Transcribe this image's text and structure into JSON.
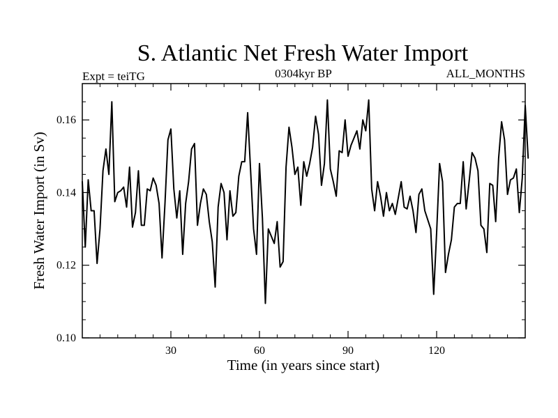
{
  "chart_data": {
    "type": "line",
    "title": "S. Atlantic Net Fresh Water Import",
    "subtitle_left": "Expt = teiTG",
    "subtitle_center": "0304kyr BP",
    "subtitle_right": "ALL_MONTHS",
    "xlabel": "Time (in years since start)",
    "ylabel": "Fresh Water Import (in Sv)",
    "xlim": [
      0,
      150
    ],
    "ylim": [
      0.1,
      0.17
    ],
    "x_ticks": [
      30,
      60,
      90,
      120
    ],
    "x_tick_labels": [
      "30",
      "60",
      "90",
      "120"
    ],
    "x_minor_step": 6,
    "y_ticks": [
      0.1,
      0.12,
      0.14,
      0.16
    ],
    "y_tick_labels": [
      "0.10",
      "0.12",
      "0.14",
      "0.16"
    ],
    "y_minor_step": 0.005,
    "grid": false,
    "x_start": 0,
    "x_step": 1,
    "series": [
      {
        "name": "Fresh Water Import",
        "color": "#000000",
        "values": [
          0.143,
          0.125,
          0.1435,
          0.135,
          0.135,
          0.1205,
          0.13,
          0.146,
          0.152,
          0.145,
          0.165,
          0.1375,
          0.14,
          0.1405,
          0.1415,
          0.136,
          0.147,
          0.1305,
          0.1345,
          0.146,
          0.131,
          0.131,
          0.141,
          0.1405,
          0.144,
          0.142,
          0.137,
          0.122,
          0.137,
          0.1545,
          0.1575,
          0.141,
          0.133,
          0.1405,
          0.123,
          0.137,
          0.143,
          0.152,
          0.1535,
          0.131,
          0.137,
          0.141,
          0.1395,
          0.132,
          0.1265,
          0.114,
          0.136,
          0.1425,
          0.14,
          0.127,
          0.1405,
          0.1335,
          0.1345,
          0.1445,
          0.1485,
          0.1485,
          0.162,
          0.146,
          0.13,
          0.123,
          0.148,
          0.133,
          0.1095,
          0.13,
          0.128,
          0.126,
          0.132,
          0.1195,
          0.121,
          0.147,
          0.158,
          0.1525,
          0.145,
          0.147,
          0.1365,
          0.1485,
          0.1445,
          0.148,
          0.1525,
          0.161,
          0.156,
          0.142,
          0.148,
          0.1655,
          0.1465,
          0.143,
          0.139,
          0.1515,
          0.151,
          0.16,
          0.15,
          0.153,
          0.155,
          0.157,
          0.152,
          0.16,
          0.157,
          0.1655,
          0.141,
          0.135,
          0.143,
          0.139,
          0.1335,
          0.14,
          0.135,
          0.137,
          0.134,
          0.1385,
          0.143,
          0.136,
          0.1355,
          0.139,
          0.135,
          0.129,
          0.1395,
          0.141,
          0.135,
          0.1325,
          0.13,
          0.112,
          0.129,
          0.148,
          0.143,
          0.118,
          0.123,
          0.127,
          0.136,
          0.137,
          0.137,
          0.1485,
          0.1355,
          0.143,
          0.151,
          0.1495,
          0.146,
          0.131,
          0.13,
          0.1235,
          0.1425,
          0.142,
          0.132,
          0.1495,
          0.1595,
          0.1545,
          0.1395,
          0.1435,
          0.144,
          0.1465,
          0.1345,
          0.144,
          0.164,
          0.1495
        ]
      }
    ]
  }
}
